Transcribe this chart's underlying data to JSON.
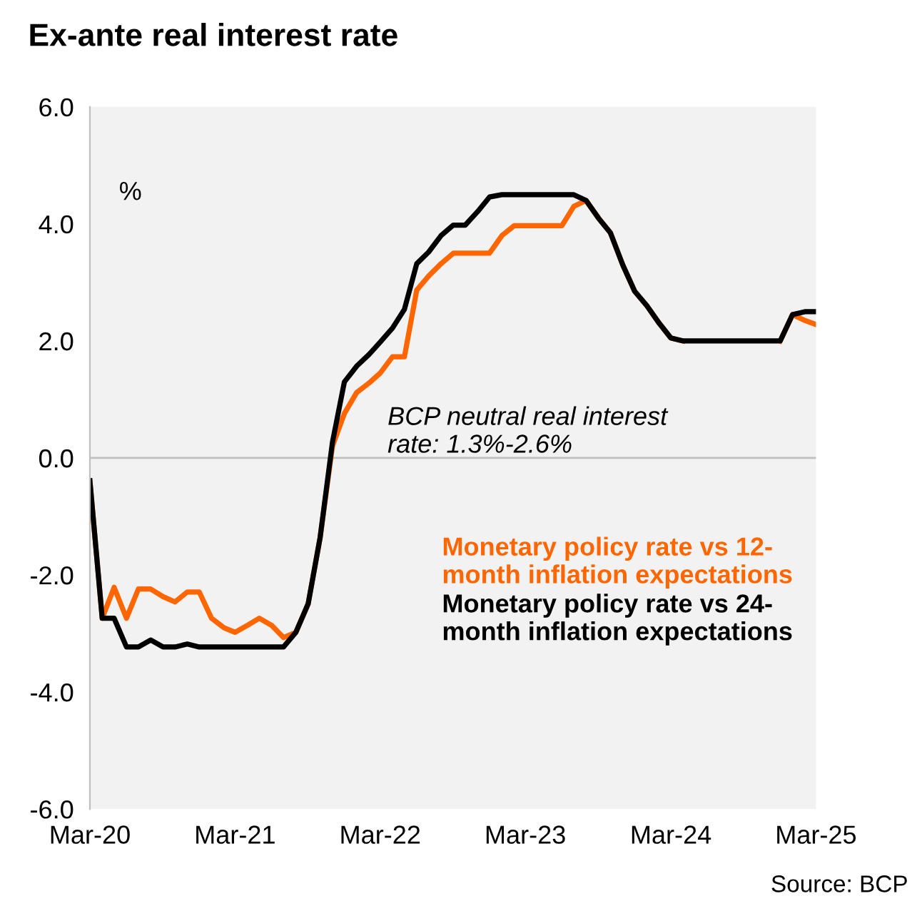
{
  "chart_data": {
    "type": "line",
    "title": "Ex-ante real interest rate",
    "annotations": [
      "%",
      "BCP neutral real interest rate: 1.3%-2.6%",
      "Source: BCP"
    ],
    "x": [
      "2020-03",
      "2020-04",
      "2020-05",
      "2020-06",
      "2020-07",
      "2020-08",
      "2020-09",
      "2020-10",
      "2020-11",
      "2020-12",
      "2021-01",
      "2021-02",
      "2021-03",
      "2021-04",
      "2021-05",
      "2021-06",
      "2021-07",
      "2021-08",
      "2021-09",
      "2021-10",
      "2021-11",
      "2021-12",
      "2022-01",
      "2022-02",
      "2022-03",
      "2022-04",
      "2022-05",
      "2022-06",
      "2022-07",
      "2022-08",
      "2022-09",
      "2022-10",
      "2022-11",
      "2022-12",
      "2023-01",
      "2023-02",
      "2023-03",
      "2023-04",
      "2023-05",
      "2023-06",
      "2023-07",
      "2023-08",
      "2023-09",
      "2023-10",
      "2023-11",
      "2023-12",
      "2024-01",
      "2024-02",
      "2024-03",
      "2024-04",
      "2024-05",
      "2024-06",
      "2024-07",
      "2024-08",
      "2024-09",
      "2024-10",
      "2024-11",
      "2024-12",
      "2025-01",
      "2025-02",
      "2025-03"
    ],
    "series": [
      {
        "name": "Monetary policy rate vs 12-month inflation expectations",
        "color": "#ff6600",
        "values": [
          -0.39,
          -2.74,
          -2.21,
          -2.74,
          -2.24,
          -2.24,
          -2.37,
          -2.46,
          -2.29,
          -2.29,
          -2.74,
          -2.9,
          -2.98,
          -2.86,
          -2.74,
          -2.86,
          -3.07,
          -2.98,
          -2.49,
          -1.36,
          0.2,
          0.76,
          1.12,
          1.28,
          1.45,
          1.73,
          1.73,
          2.87,
          3.11,
          3.32,
          3.5,
          3.5,
          3.5,
          3.5,
          3.8,
          3.97,
          3.97,
          3.97,
          3.97,
          3.97,
          4.3,
          4.4,
          4.1,
          3.85,
          3.3,
          2.85,
          2.6,
          2.3,
          2.05,
          2.0,
          null,
          null,
          null,
          null,
          null,
          null,
          null,
          2.0,
          2.45,
          2.35,
          2.28
        ]
      },
      {
        "name": "Monetary policy rate vs 24-month inflation expectations",
        "color": "#000000",
        "values": [
          -0.39,
          -2.74,
          -2.74,
          -3.23,
          -3.23,
          -3.11,
          -3.23,
          -3.23,
          -3.18,
          -3.23,
          -3.23,
          -3.23,
          -3.23,
          -3.23,
          -3.23,
          -3.23,
          -3.23,
          -2.98,
          -2.49,
          -1.36,
          0.27,
          1.3,
          1.57,
          1.77,
          1.98,
          2.22,
          2.54,
          3.32,
          3.52,
          3.8,
          3.98,
          3.98,
          4.21,
          4.46,
          4.5,
          4.5,
          4.5,
          4.5,
          4.5,
          4.5,
          4.5,
          4.4,
          4.1,
          3.85,
          3.3,
          2.85,
          2.6,
          2.3,
          2.05,
          2.0,
          2.0,
          2.0,
          2.0,
          2.0,
          2.0,
          2.0,
          2.0,
          2.0,
          2.45,
          2.5,
          2.5
        ]
      }
    ],
    "xlim": [
      "2020-03",
      "2025-03"
    ],
    "xticks": [
      {
        "value": "2020-03",
        "label": "Mar-20"
      },
      {
        "value": "2021-03",
        "label": "Mar-21"
      },
      {
        "value": "2022-03",
        "label": "Mar-22"
      },
      {
        "value": "2023-03",
        "label": "Mar-23"
      },
      {
        "value": "2024-03",
        "label": "Mar-24"
      },
      {
        "value": "2025-03",
        "label": "Mar-25"
      }
    ],
    "ylim": [
      -6,
      6
    ],
    "yticks": [
      {
        "value": -6,
        "label": "-6.0"
      },
      {
        "value": -4,
        "label": "-4.0"
      },
      {
        "value": -2,
        "label": "-2.0"
      },
      {
        "value": 0,
        "label": "0.0"
      },
      {
        "value": 2,
        "label": "2.0"
      },
      {
        "value": 4,
        "label": "4.0"
      },
      {
        "value": 6,
        "label": "6.0"
      }
    ],
    "ref_lines": [
      {
        "axis": "y",
        "value": 0,
        "color": "#bfbfbf"
      }
    ],
    "grid": false,
    "legend": "lower right",
    "marker": "none",
    "line_style": "solid"
  }
}
